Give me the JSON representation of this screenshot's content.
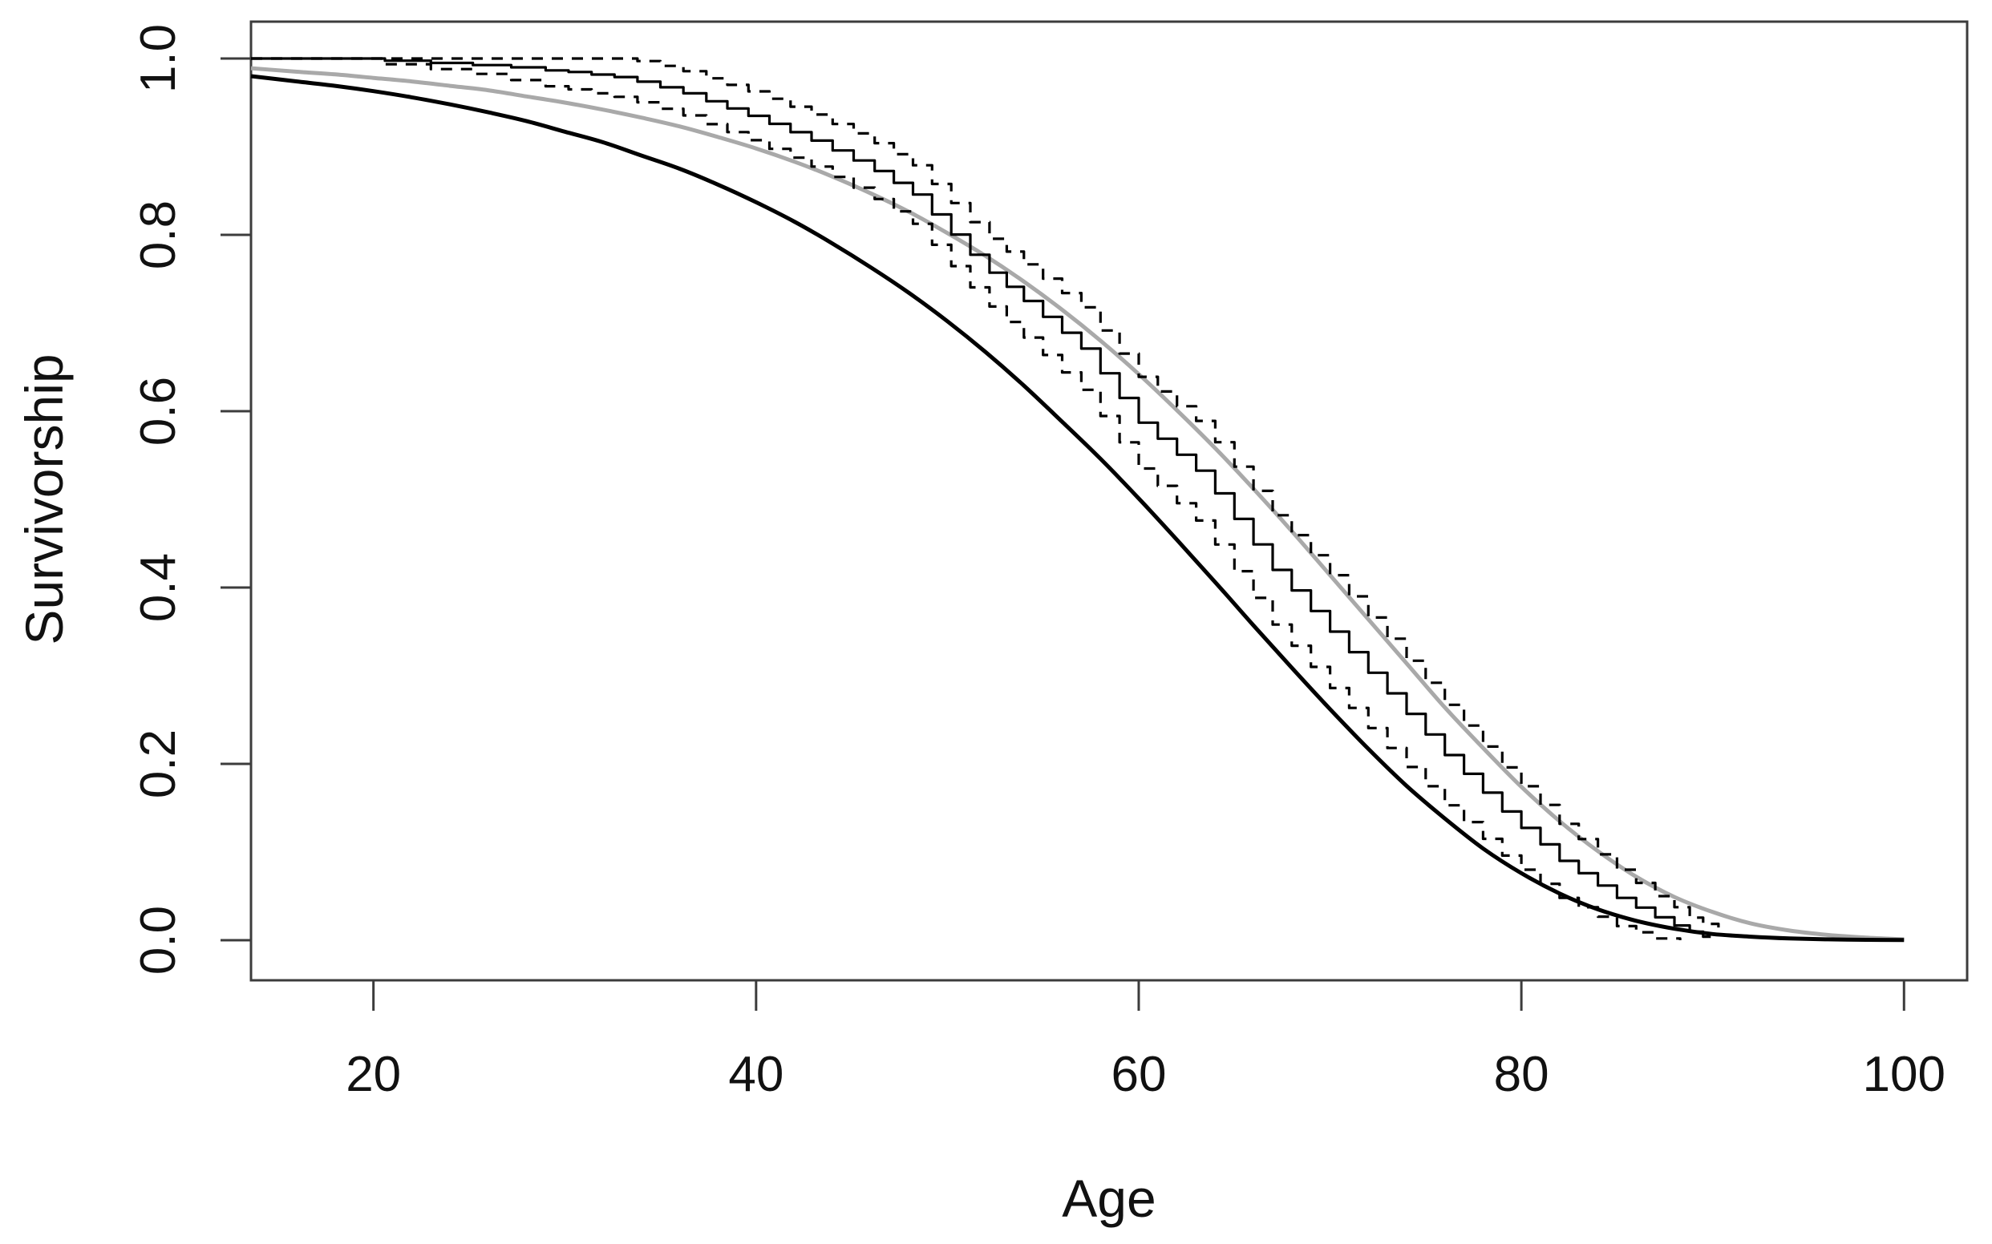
{
  "figure": {
    "background": "#ffffff"
  },
  "chart_data": {
    "type": "line",
    "title": "",
    "xlabel": "Age",
    "ylabel": "Survivorship",
    "xlim_display": [
      13.6,
      103.3
    ],
    "ylim_display": [
      -0.0455,
      1.0418
    ],
    "xticks": {
      "values": [
        20,
        40,
        60,
        80,
        100
      ],
      "labels": [
        "20",
        "40",
        "60",
        "80",
        "100"
      ]
    },
    "yticks": {
      "values": [
        0,
        0.2,
        0.4,
        0.6,
        0.8,
        1
      ],
      "labels": [
        "0.0",
        "0.2",
        "0.4",
        "0.6",
        "0.8",
        "1.0"
      ]
    },
    "grid": false,
    "legend": "none",
    "axis_color": "#3c3c3c",
    "text_color": "#111111",
    "series": [
      {
        "name": "parametric-survival-gray",
        "description": "smooth gray model survivorship curve",
        "type": "smooth",
        "color": "#a9a9a9",
        "width": 5,
        "dash": "solid",
        "points": [
          [
            13.6,
            0.989
          ],
          [
            16,
            0.985
          ],
          [
            18,
            0.982
          ],
          [
            20,
            0.978
          ],
          [
            22,
            0.974
          ],
          [
            24,
            0.969
          ],
          [
            26,
            0.964
          ],
          [
            28,
            0.957
          ],
          [
            30,
            0.95
          ],
          [
            32,
            0.942
          ],
          [
            34,
            0.933
          ],
          [
            36,
            0.923
          ],
          [
            38,
            0.911
          ],
          [
            40,
            0.898
          ],
          [
            42,
            0.883
          ],
          [
            44,
            0.866
          ],
          [
            46,
            0.847
          ],
          [
            48,
            0.826
          ],
          [
            50,
            0.802
          ],
          [
            52,
            0.776
          ],
          [
            54,
            0.747
          ],
          [
            56,
            0.715
          ],
          [
            58,
            0.68
          ],
          [
            60,
            0.642
          ],
          [
            62,
            0.601
          ],
          [
            64,
            0.558
          ],
          [
            66,
            0.512
          ],
          [
            68,
            0.464
          ],
          [
            70,
            0.414
          ],
          [
            72,
            0.364
          ],
          [
            74,
            0.314
          ],
          [
            76,
            0.264
          ],
          [
            78,
            0.218
          ],
          [
            80,
            0.174
          ],
          [
            82,
            0.135
          ],
          [
            84,
            0.101
          ],
          [
            86,
            0.072
          ],
          [
            88,
            0.049
          ],
          [
            90,
            0.032
          ],
          [
            92,
            0.019
          ],
          [
            94,
            0.011
          ],
          [
            96,
            0.006
          ],
          [
            98,
            0.003
          ],
          [
            100,
            0.001
          ]
        ]
      },
      {
        "name": "parametric-survival-black",
        "description": "smooth black model survivorship curve",
        "type": "smooth",
        "color": "#000000",
        "width": 5,
        "dash": "solid",
        "points": [
          [
            13.6,
            0.98
          ],
          [
            16,
            0.974
          ],
          [
            18,
            0.969
          ],
          [
            20,
            0.963
          ],
          [
            22,
            0.956
          ],
          [
            24,
            0.948
          ],
          [
            26,
            0.939
          ],
          [
            28,
            0.929
          ],
          [
            30,
            0.917
          ],
          [
            32,
            0.905
          ],
          [
            34,
            0.89
          ],
          [
            36,
            0.875
          ],
          [
            38,
            0.857
          ],
          [
            40,
            0.837
          ],
          [
            42,
            0.815
          ],
          [
            44,
            0.79
          ],
          [
            46,
            0.763
          ],
          [
            48,
            0.734
          ],
          [
            50,
            0.702
          ],
          [
            52,
            0.667
          ],
          [
            54,
            0.629
          ],
          [
            56,
            0.588
          ],
          [
            58,
            0.546
          ],
          [
            60,
            0.501
          ],
          [
            62,
            0.454
          ],
          [
            64,
            0.406
          ],
          [
            66,
            0.357
          ],
          [
            68,
            0.309
          ],
          [
            70,
            0.262
          ],
          [
            72,
            0.217
          ],
          [
            74,
            0.175
          ],
          [
            76,
            0.138
          ],
          [
            78,
            0.104
          ],
          [
            80,
            0.076
          ],
          [
            82,
            0.053
          ],
          [
            84,
            0.035
          ],
          [
            86,
            0.022
          ],
          [
            88,
            0.013
          ],
          [
            90,
            0.007
          ],
          [
            92,
            0.004
          ],
          [
            94,
            0.002
          ],
          [
            96,
            0.001
          ],
          [
            98,
            0.0004
          ],
          [
            100,
            0.0001
          ]
        ]
      },
      {
        "name": "kaplan-meier-estimate",
        "description": "solid step Kaplan-Meier survivorship estimate",
        "type": "step",
        "color": "#000000",
        "width": 3.2,
        "dash": "solid",
        "points": [
          [
            13.6,
            1
          ],
          [
            20.6,
            0.9975
          ],
          [
            23,
            0.995
          ],
          [
            25.2,
            0.9925
          ],
          [
            27.2,
            0.99
          ],
          [
            29,
            0.9865
          ],
          [
            30.2,
            0.9847
          ],
          [
            31.4,
            0.9818
          ],
          [
            32.6,
            0.979
          ],
          [
            33.8,
            0.9737
          ],
          [
            35,
            0.9673
          ],
          [
            36.2,
            0.9605
          ],
          [
            37.4,
            0.9515
          ],
          [
            38.5,
            0.9433
          ],
          [
            39.6,
            0.935
          ],
          [
            40.7,
            0.9259
          ],
          [
            41.8,
            0.9164
          ],
          [
            42.9,
            0.9069
          ],
          [
            44,
            0.8957
          ],
          [
            45.1,
            0.8843
          ],
          [
            46.2,
            0.8723
          ],
          [
            47.2,
            0.859
          ],
          [
            48.2,
            0.8457
          ],
          [
            49.2,
            0.8232
          ],
          [
            50.2,
            0.8003
          ],
          [
            51.2,
            0.7774
          ],
          [
            52.2,
            0.7571
          ],
          [
            53.1,
            0.7411
          ],
          [
            54,
            0.725
          ],
          [
            55,
            0.707
          ],
          [
            56,
            0.689
          ],
          [
            57,
            0.671
          ],
          [
            58,
            0.643
          ],
          [
            59,
            0.615
          ],
          [
            60,
            0.587
          ],
          [
            61,
            0.5688
          ],
          [
            62,
            0.5506
          ],
          [
            63,
            0.5325
          ],
          [
            64,
            0.5068
          ],
          [
            65,
            0.4778
          ],
          [
            66,
            0.4489
          ],
          [
            67,
            0.42
          ],
          [
            68,
            0.3967
          ],
          [
            69,
            0.3733
          ],
          [
            70,
            0.35
          ],
          [
            71,
            0.3267
          ],
          [
            72,
            0.3033
          ],
          [
            73,
            0.28
          ],
          [
            74,
            0.2567
          ],
          [
            75,
            0.2333
          ],
          [
            76,
            0.21
          ],
          [
            77,
            0.1887
          ],
          [
            78,
            0.1673
          ],
          [
            79,
            0.146
          ],
          [
            80,
            0.1273
          ],
          [
            81,
            0.1087
          ],
          [
            82,
            0.09
          ],
          [
            83,
            0.076
          ],
          [
            84,
            0.062
          ],
          [
            85,
            0.048
          ],
          [
            86,
            0.037
          ],
          [
            87,
            0.026
          ],
          [
            88,
            0.0167
          ],
          [
            88.8,
            0.0096
          ],
          [
            89.5,
            0.004
          ],
          [
            89.9,
            0.004
          ]
        ]
      },
      {
        "name": "ci-lower",
        "description": "dashed step lower confidence band",
        "type": "step",
        "color": "#000000",
        "width": 3.2,
        "dash": "14 11",
        "points": [
          [
            13.6,
            1
          ],
          [
            20.6,
            0.9935
          ],
          [
            23,
            0.988
          ],
          [
            25.2,
            0.9825
          ],
          [
            27.2,
            0.9755
          ],
          [
            29,
            0.9685
          ],
          [
            30.2,
            0.965
          ],
          [
            31.4,
            0.9605
          ],
          [
            32.6,
            0.9565
          ],
          [
            33.8,
            0.9503
          ],
          [
            35,
            0.943
          ],
          [
            36.2,
            0.9354
          ],
          [
            37.4,
            0.9255
          ],
          [
            38.5,
            0.9165
          ],
          [
            39.6,
            0.9073
          ],
          [
            40.7,
            0.8975
          ],
          [
            41.8,
            0.8875
          ],
          [
            42.9,
            0.8774
          ],
          [
            44,
            0.8657
          ],
          [
            45.1,
            0.8535
          ],
          [
            46.2,
            0.8406
          ],
          [
            47.2,
            0.8266
          ],
          [
            48.2,
            0.8125
          ],
          [
            49.2,
            0.7887
          ],
          [
            50.2,
            0.7645
          ],
          [
            51.2,
            0.7404
          ],
          [
            52.2,
            0.7187
          ],
          [
            53.1,
            0.7012
          ],
          [
            54,
            0.6835
          ],
          [
            55,
            0.6637
          ],
          [
            56,
            0.644
          ],
          [
            57,
            0.6242
          ],
          [
            58,
            0.5945
          ],
          [
            59,
            0.5647
          ],
          [
            60,
            0.535
          ],
          [
            61,
            0.5153
          ],
          [
            62,
            0.4956
          ],
          [
            63,
            0.476
          ],
          [
            64,
            0.4488
          ],
          [
            65,
            0.4185
          ],
          [
            66,
            0.3882
          ],
          [
            67,
            0.358
          ],
          [
            68,
            0.334
          ],
          [
            69,
            0.31
          ],
          [
            70,
            0.286
          ],
          [
            71,
            0.2634
          ],
          [
            72,
            0.2406
          ],
          [
            73,
            0.218
          ],
          [
            74,
            0.1964
          ],
          [
            75,
            0.1746
          ],
          [
            76,
            0.153
          ],
          [
            77,
            0.134
          ],
          [
            78,
            0.115
          ],
          [
            79,
            0.096
          ],
          [
            80,
            0.08
          ],
          [
            81,
            0.064
          ],
          [
            82,
            0.048
          ],
          [
            83,
            0.0373
          ],
          [
            84,
            0.0267
          ],
          [
            85,
            0.016
          ],
          [
            86,
            0.009
          ],
          [
            87,
            0.002
          ],
          [
            88.3,
            0
          ]
        ]
      },
      {
        "name": "ci-upper",
        "description": "dashed step upper confidence band",
        "type": "step",
        "color": "#000000",
        "width": 3.2,
        "dash": "14 11",
        "points": [
          [
            13.6,
            1
          ],
          [
            33.8,
            0.9971
          ],
          [
            35,
            0.9916
          ],
          [
            36.2,
            0.9856
          ],
          [
            37.4,
            0.9775
          ],
          [
            38.5,
            0.9701
          ],
          [
            39.6,
            0.9627
          ],
          [
            40.7,
            0.9543
          ],
          [
            41.8,
            0.9453
          ],
          [
            42.9,
            0.9364
          ],
          [
            44,
            0.9257
          ],
          [
            45.1,
            0.9151
          ],
          [
            46.2,
            0.904
          ],
          [
            47.2,
            0.8914
          ],
          [
            48.2,
            0.8789
          ],
          [
            49.2,
            0.8577
          ],
          [
            50.2,
            0.8361
          ],
          [
            51.2,
            0.8144
          ],
          [
            52.2,
            0.7955
          ],
          [
            53.1,
            0.781
          ],
          [
            54,
            0.7665
          ],
          [
            55,
            0.7503
          ],
          [
            56,
            0.734
          ],
          [
            57,
            0.7178
          ],
          [
            58,
            0.6915
          ],
          [
            59,
            0.6653
          ],
          [
            60,
            0.639
          ],
          [
            61,
            0.6223
          ],
          [
            62,
            0.6056
          ],
          [
            63,
            0.589
          ],
          [
            64,
            0.5648
          ],
          [
            65,
            0.5371
          ],
          [
            66,
            0.5096
          ],
          [
            67,
            0.482
          ],
          [
            68,
            0.4594
          ],
          [
            69,
            0.4366
          ],
          [
            70,
            0.414
          ],
          [
            71,
            0.39
          ],
          [
            72,
            0.366
          ],
          [
            73,
            0.342
          ],
          [
            74,
            0.317
          ],
          [
            75,
            0.292
          ],
          [
            76,
            0.267
          ],
          [
            77,
            0.2434
          ],
          [
            78,
            0.2196
          ],
          [
            79,
            0.196
          ],
          [
            80,
            0.1746
          ],
          [
            81,
            0.1534
          ],
          [
            82,
            0.132
          ],
          [
            83,
            0.1147
          ],
          [
            84,
            0.0973
          ],
          [
            85,
            0.08
          ],
          [
            86,
            0.065
          ],
          [
            87,
            0.05
          ],
          [
            88,
            0.0374
          ],
          [
            88.8,
            0.0256
          ],
          [
            89.5,
            0.0185
          ],
          [
            90.3,
            0.014
          ]
        ]
      }
    ]
  }
}
